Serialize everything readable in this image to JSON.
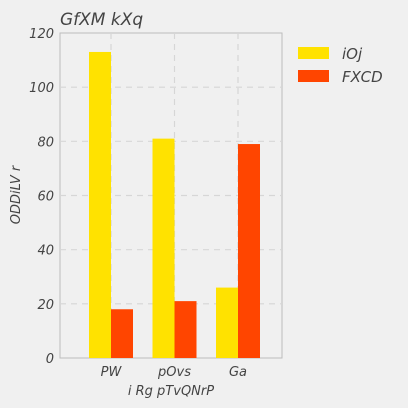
{
  "chart_data": {
    "type": "bar",
    "title": "GfXM kXq",
    "xlabel": "i Rg pTvQNrP",
    "ylabel": "ODDiLV r",
    "categories": [
      "PW",
      "pOvs",
      "Ga"
    ],
    "series": [
      {
        "name": "iOj",
        "values": [
          113,
          81,
          26
        ],
        "color": "#ffe200"
      },
      {
        "name": "FXCD",
        "values": [
          18,
          21,
          79
        ],
        "color": "#ff4500"
      }
    ],
    "ylim": [
      0,
      120
    ],
    "yticks": [
      0,
      20,
      40,
      60,
      80,
      100,
      120
    ],
    "grid": true,
    "legend": "outside-right"
  }
}
